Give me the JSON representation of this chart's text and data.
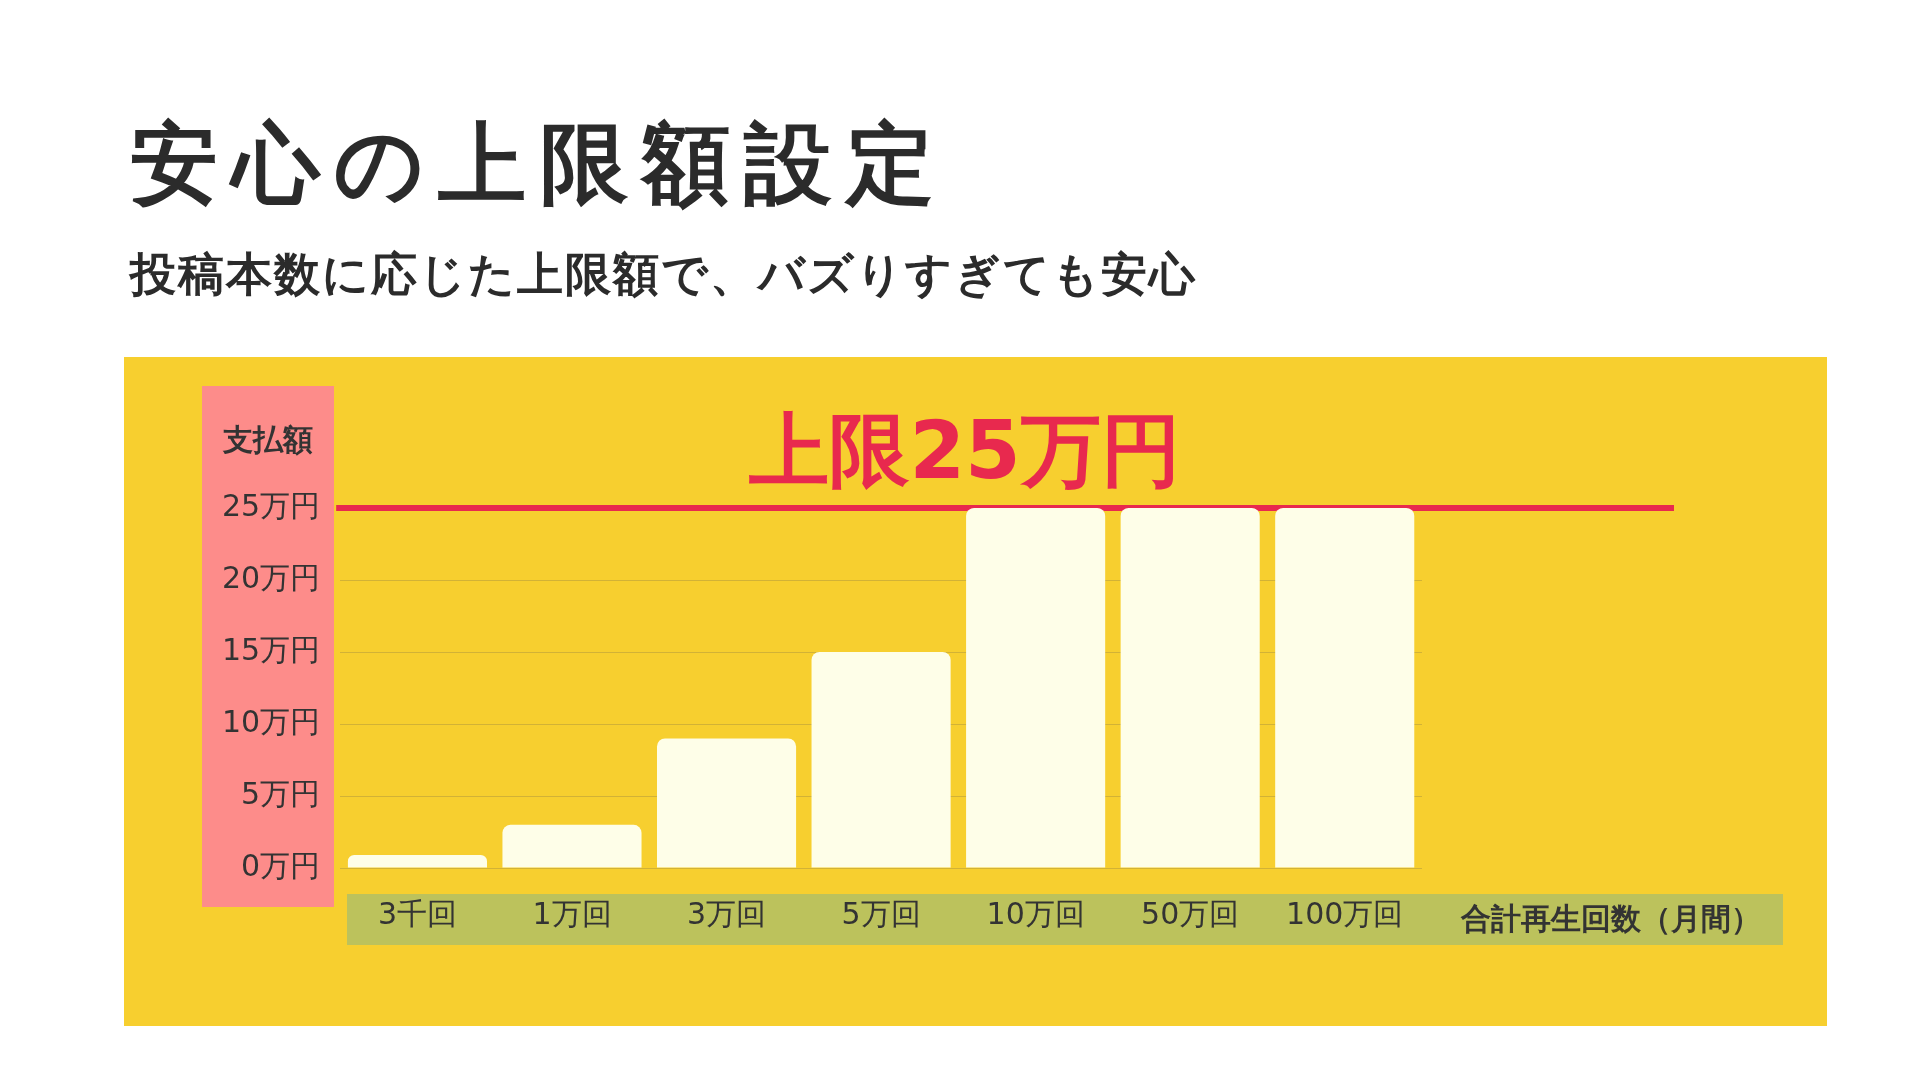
{
  "chart_data": {
    "type": "bar",
    "title": "安心の上限額設定",
    "subtitle": "投稿本数に応じた上限額で、バズりすぎても安心",
    "xlabel": "合計再生回数（月間）",
    "ylabel": "支払額",
    "categories": [
      "3千回",
      "1万回",
      "3万回",
      "5万回",
      "10万回",
      "50万回",
      "100万回"
    ],
    "values": [
      0.9,
      3,
      9,
      15,
      25,
      25,
      25
    ],
    "color": "#fefee8",
    "ylim": [
      0,
      25
    ],
    "yticks": [
      {
        "value": 0,
        "label": "0万円"
      },
      {
        "value": 5,
        "label": "5万円"
      },
      {
        "value": 10,
        "label": "10万円"
      },
      {
        "value": 15,
        "label": "15万円"
      },
      {
        "value": 20,
        "label": "20万円"
      },
      {
        "value": 25,
        "label": "25万円"
      }
    ],
    "grid": "y",
    "ref_lines": [
      {
        "axis": "y",
        "value": 25,
        "label": "上限25万円",
        "color": "#e8294e"
      }
    ]
  }
}
